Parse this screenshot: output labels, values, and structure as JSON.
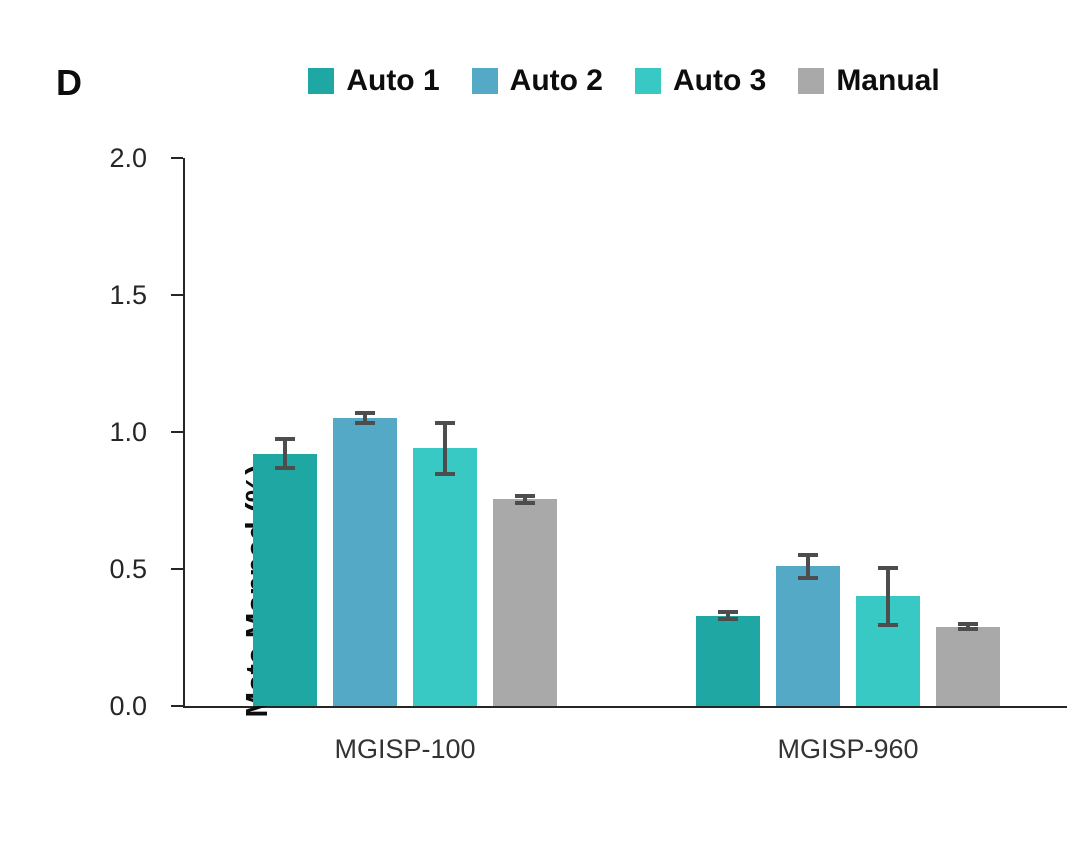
{
  "panel_label": "D",
  "colors": {
    "auto1": "#1fa7a3",
    "auto2": "#54a9c6",
    "auto3": "#38c9c5",
    "manual": "#a9a9a9",
    "error_bar": "#4d4d4d",
    "axis": "#262626"
  },
  "chart_data": {
    "type": "bar",
    "title": "",
    "xlabel": "",
    "ylabel": "Mate Mapped (%)",
    "ylim": [
      0,
      2.0
    ],
    "yticks": [
      0,
      0.5,
      1.0,
      1.5,
      2.0
    ],
    "ytick_labels": [
      "0.0",
      "0.5",
      "1.0",
      "1.5",
      "2.0"
    ],
    "grid": false,
    "legend_position": "top",
    "categories": [
      "MGISP-100",
      "MGISP-960"
    ],
    "series": [
      {
        "name": "Auto 1",
        "color": "#1fa7a3",
        "values": [
          0.92,
          0.33
        ],
        "errors": [
          0.06,
          0.02
        ]
      },
      {
        "name": "Auto 2",
        "color": "#54a9c6",
        "values": [
          1.05,
          0.51
        ],
        "errors": [
          0.025,
          0.05
        ]
      },
      {
        "name": "Auto 3",
        "color": "#38c9c5",
        "values": [
          0.94,
          0.4
        ],
        "errors": [
          0.1,
          0.11
        ]
      },
      {
        "name": "Manual",
        "color": "#a9a9a9",
        "values": [
          0.755,
          0.29
        ],
        "errors": [
          0.02,
          0.015
        ]
      }
    ]
  }
}
